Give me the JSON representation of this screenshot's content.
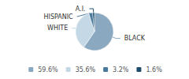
{
  "chart_data": {
    "type": "pie",
    "categories": [
      "BLACK",
      "WHITE",
      "HISPANIC",
      "A.I."
    ],
    "values": [
      59.6,
      35.6,
      3.2,
      1.6
    ],
    "value_labels": [
      "59.6%",
      "35.6%",
      "3.2%",
      "1.6%"
    ],
    "colors": [
      "#8aa8bf",
      "#c5d8e5",
      "#4a7a9b",
      "#1e4d6b"
    ],
    "legend": "bottom"
  }
}
